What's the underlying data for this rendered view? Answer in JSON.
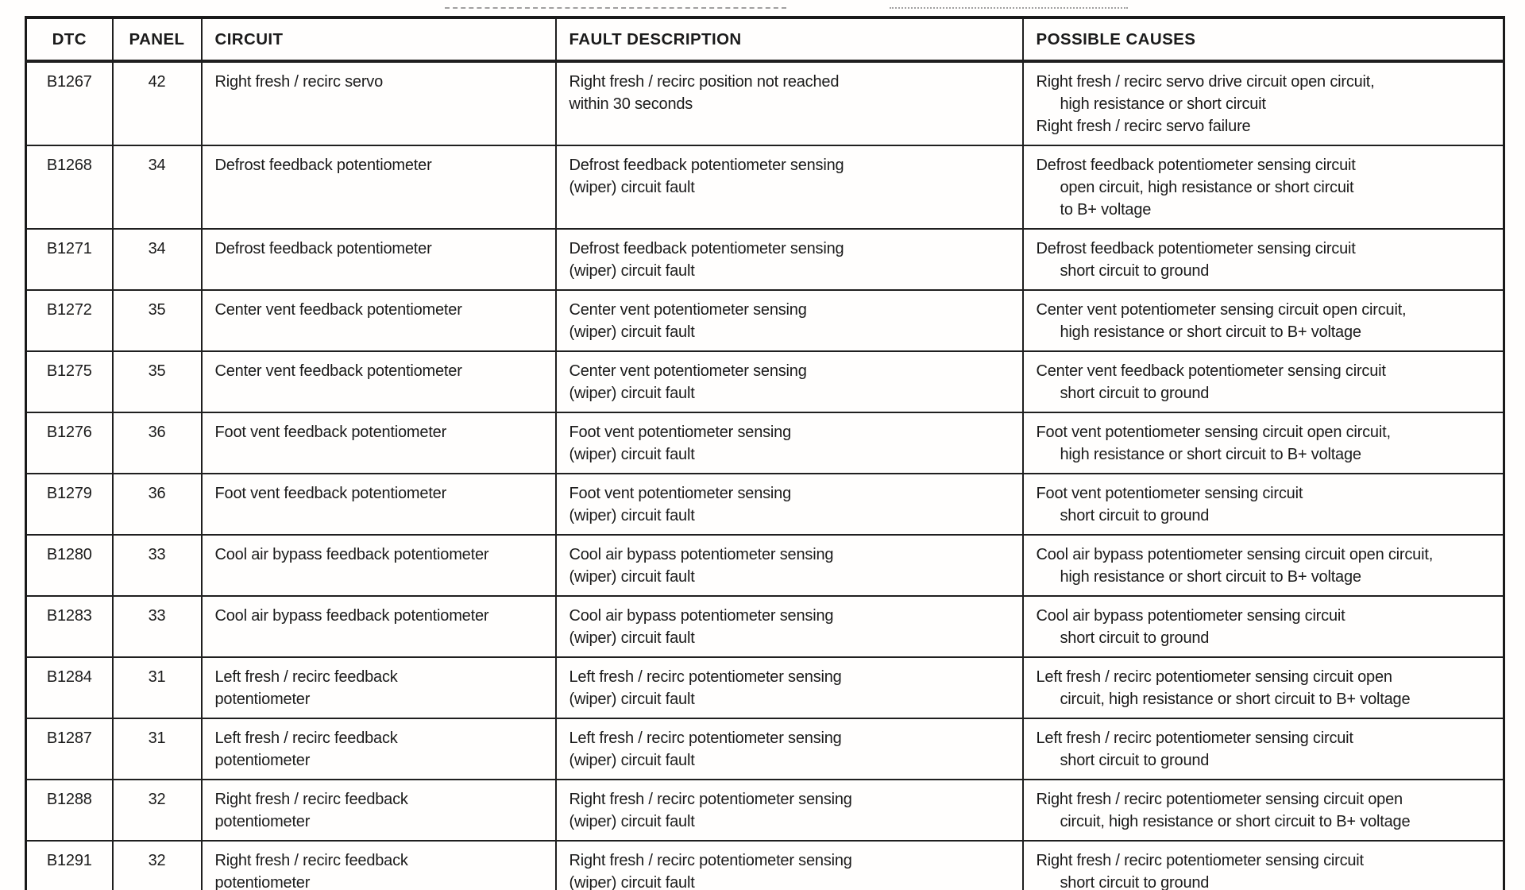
{
  "table": {
    "headers": [
      "DTC",
      "PANEL",
      "CIRCUIT",
      "FAULT DESCRIPTION",
      "POSSIBLE CAUSES"
    ],
    "rows": [
      {
        "dtc": "B1267",
        "panel": "42",
        "circuit": [
          "Right fresh / recirc servo"
        ],
        "fault": [
          "Right fresh / recirc position not reached",
          "within 30 seconds"
        ],
        "causes": [
          {
            "text": "Right fresh / recirc servo drive circuit open circuit,",
            "indent": false
          },
          {
            "text": "high resistance or short circuit",
            "indent": true
          },
          {
            "text": "Right fresh / recirc servo failure",
            "indent": false
          }
        ]
      },
      {
        "dtc": "B1268",
        "panel": "34",
        "circuit": [
          "Defrost feedback potentiometer"
        ],
        "fault": [
          "Defrost feedback potentiometer sensing",
          "(wiper) circuit fault"
        ],
        "causes": [
          {
            "text": "Defrost feedback potentiometer sensing circuit",
            "indent": false
          },
          {
            "text": "open circuit, high resistance or short circuit",
            "indent": true
          },
          {
            "text": "to B+ voltage",
            "indent": true
          }
        ]
      },
      {
        "dtc": "B1271",
        "panel": "34",
        "circuit": [
          "Defrost feedback potentiometer"
        ],
        "fault": [
          "Defrost feedback potentiometer sensing",
          "(wiper) circuit fault"
        ],
        "causes": [
          {
            "text": "Defrost feedback potentiometer sensing circuit",
            "indent": false
          },
          {
            "text": "short circuit to ground",
            "indent": true
          }
        ]
      },
      {
        "dtc": "B1272",
        "panel": "35",
        "circuit": [
          "Center vent feedback potentiometer"
        ],
        "fault": [
          "Center vent potentiometer sensing",
          "(wiper) circuit fault"
        ],
        "causes": [
          {
            "text": "Center vent potentiometer sensing circuit open circuit,",
            "indent": false
          },
          {
            "text": "high resistance or short circuit to B+ voltage",
            "indent": true
          }
        ]
      },
      {
        "dtc": "B1275",
        "panel": "35",
        "circuit": [
          "Center vent feedback potentiometer"
        ],
        "fault": [
          "Center vent potentiometer sensing",
          "(wiper) circuit fault"
        ],
        "causes": [
          {
            "text": "Center vent feedback potentiometer sensing circuit",
            "indent": false
          },
          {
            "text": "short circuit to ground",
            "indent": true
          }
        ]
      },
      {
        "dtc": "B1276",
        "panel": "36",
        "circuit": [
          "Foot vent feedback potentiometer"
        ],
        "fault": [
          "Foot vent potentiometer sensing",
          "(wiper) circuit fault"
        ],
        "causes": [
          {
            "text": "Foot vent potentiometer sensing circuit open circuit,",
            "indent": false
          },
          {
            "text": "high resistance or short circuit to B+ voltage",
            "indent": true
          }
        ]
      },
      {
        "dtc": "B1279",
        "panel": "36",
        "circuit": [
          "Foot vent feedback potentiometer"
        ],
        "fault": [
          "Foot vent potentiometer sensing",
          "(wiper) circuit fault"
        ],
        "causes": [
          {
            "text": "Foot vent potentiometer sensing circuit",
            "indent": false
          },
          {
            "text": "short circuit to ground",
            "indent": true
          }
        ]
      },
      {
        "dtc": "B1280",
        "panel": "33",
        "circuit": [
          "Cool air bypass feedback potentiometer"
        ],
        "fault": [
          "Cool air bypass potentiometer sensing",
          "(wiper) circuit fault"
        ],
        "causes": [
          {
            "text": "Cool air bypass potentiometer sensing circuit open circuit,",
            "indent": false
          },
          {
            "text": "high resistance or short circuit to B+ voltage",
            "indent": true
          }
        ]
      },
      {
        "dtc": "B1283",
        "panel": "33",
        "circuit": [
          "Cool air bypass feedback potentiometer"
        ],
        "fault": [
          "Cool air bypass potentiometer sensing",
          "(wiper) circuit fault"
        ],
        "causes": [
          {
            "text": "Cool air bypass potentiometer sensing circuit",
            "indent": false
          },
          {
            "text": "short circuit to ground",
            "indent": true
          }
        ]
      },
      {
        "dtc": "B1284",
        "panel": "31",
        "circuit": [
          "Left fresh / recirc feedback",
          "potentiometer"
        ],
        "fault": [
          "Left fresh / recirc potentiometer sensing",
          "(wiper) circuit fault"
        ],
        "causes": [
          {
            "text": "Left fresh / recirc potentiometer sensing circuit open",
            "indent": false
          },
          {
            "text": "circuit, high resistance or short circuit to B+ voltage",
            "indent": true
          }
        ]
      },
      {
        "dtc": "B1287",
        "panel": "31",
        "circuit": [
          "Left fresh / recirc feedback",
          "potentiometer"
        ],
        "fault": [
          "Left fresh / recirc potentiometer sensing",
          "(wiper) circuit fault"
        ],
        "causes": [
          {
            "text": "Left fresh / recirc potentiometer sensing circuit",
            "indent": false
          },
          {
            "text": "short circuit to ground",
            "indent": true
          }
        ]
      },
      {
        "dtc": "B1288",
        "panel": "32",
        "circuit": [
          "Right fresh / recirc feedback",
          "potentiometer"
        ],
        "fault": [
          "Right fresh / recirc potentiometer sensing",
          "(wiper) circuit fault"
        ],
        "causes": [
          {
            "text": "Right fresh / recirc potentiometer sensing circuit open",
            "indent": false
          },
          {
            "text": "circuit, high resistance or short circuit to B+ voltage",
            "indent": true
          }
        ]
      },
      {
        "dtc": "B1291",
        "panel": "32",
        "circuit": [
          "Right fresh / recirc feedback",
          "potentiometer"
        ],
        "fault": [
          "Right fresh / recirc potentiometer sensing",
          "(wiper) circuit fault"
        ],
        "causes": [
          {
            "text": "Right fresh / recirc potentiometer sensing circuit",
            "indent": false
          },
          {
            "text": "short circuit to ground",
            "indent": true
          }
        ]
      }
    ]
  },
  "colors": {
    "text": "#1b1b1b",
    "border": "#1f1f1f",
    "background": "#fffefd"
  }
}
